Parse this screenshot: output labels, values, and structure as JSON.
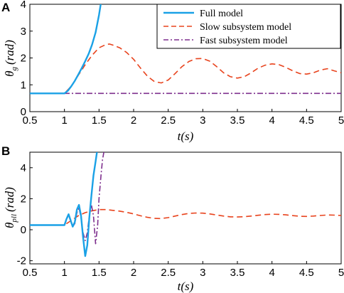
{
  "panels": {
    "A": {
      "label": "A",
      "xlabel": "t(s)",
      "ylabel": "θ",
      "ylabel_sub": "g",
      "ylabel_unit": "(rad)"
    },
    "B": {
      "label": "B",
      "xlabel": "t(s)",
      "ylabel": "θ",
      "ylabel_sub": "pll",
      "ylabel_unit": "(rad)"
    }
  },
  "legend": {
    "entries": [
      "Full model",
      "Slow subsystem model",
      "Fast subsystem model"
    ],
    "colors": [
      "#1aa1e6",
      "#e8431d",
      "#7e2f8e"
    ]
  },
  "chart_data": [
    {
      "type": "line",
      "panel": "A",
      "xlim": [
        0.5,
        5
      ],
      "ylim": [
        0,
        4
      ],
      "xticks": [
        0.5,
        1,
        1.5,
        2,
        2.5,
        3,
        3.5,
        4,
        4.5,
        5
      ],
      "xtick_labels": [
        "0.5",
        "1",
        "1.5",
        "2",
        "2.5",
        "3",
        "3.5",
        "4",
        "4.5",
        "5"
      ],
      "yticks": [
        0,
        1,
        2,
        3,
        4
      ],
      "ytick_labels": [
        "0",
        "1",
        "2",
        "3",
        "4"
      ],
      "grid": false,
      "legend_position": "top-right",
      "series": [
        {
          "name": "Full model",
          "color": "#1aa1e6",
          "style": "solid",
          "x": [
            0.5,
            1.0,
            1.05,
            1.1,
            1.15,
            1.2,
            1.25,
            1.3,
            1.35,
            1.4,
            1.45,
            1.5,
            1.53
          ],
          "y": [
            0.68,
            0.68,
            0.78,
            0.95,
            1.15,
            1.38,
            1.62,
            1.88,
            2.15,
            2.5,
            2.95,
            3.6,
            4.1
          ]
        },
        {
          "name": "Slow subsystem model",
          "color": "#e8431d",
          "style": "dashed",
          "x": [
            0.5,
            1.0,
            1.1,
            1.2,
            1.3,
            1.4,
            1.5,
            1.6,
            1.65,
            1.7,
            1.8,
            1.9,
            2.0,
            2.1,
            2.2,
            2.3,
            2.4,
            2.5,
            2.6,
            2.7,
            2.8,
            2.9,
            3.0,
            3.1,
            3.2,
            3.3,
            3.4,
            3.5,
            3.6,
            3.7,
            3.8,
            3.9,
            4.0,
            4.1,
            4.2,
            4.3,
            4.4,
            4.5,
            4.6,
            4.7,
            4.8,
            4.9,
            5.0
          ],
          "y": [
            0.68,
            0.68,
            0.95,
            1.35,
            1.75,
            2.1,
            2.38,
            2.5,
            2.52,
            2.48,
            2.38,
            2.2,
            1.95,
            1.62,
            1.32,
            1.12,
            1.07,
            1.18,
            1.42,
            1.68,
            1.87,
            1.97,
            1.98,
            1.88,
            1.68,
            1.45,
            1.3,
            1.25,
            1.3,
            1.45,
            1.62,
            1.73,
            1.78,
            1.75,
            1.65,
            1.52,
            1.42,
            1.4,
            1.45,
            1.55,
            1.6,
            1.52,
            1.45
          ]
        },
        {
          "name": "Fast subsystem model",
          "color": "#7e2f8e",
          "style": "dashdot",
          "x": [
            0.5,
            5.0
          ],
          "y": [
            0.68,
            0.68
          ]
        }
      ]
    },
    {
      "type": "line",
      "panel": "B",
      "xlim": [
        0.5,
        5
      ],
      "ylim": [
        -2.2,
        5
      ],
      "xticks": [
        0.5,
        1,
        1.5,
        2,
        2.5,
        3,
        3.5,
        4,
        4.5,
        5
      ],
      "xtick_labels": [
        "0.5",
        "1",
        "1.5",
        "2",
        "2.5",
        "3",
        "3.5",
        "4",
        "4.5",
        "5"
      ],
      "yticks": [
        -2,
        0,
        2,
        4
      ],
      "ytick_labels": [
        "-2",
        "0",
        "2",
        "4"
      ],
      "grid": false,
      "series": [
        {
          "name": "Full model",
          "color": "#1aa1e6",
          "style": "solid",
          "x": [
            0.5,
            1.0,
            1.03,
            1.06,
            1.09,
            1.12,
            1.15,
            1.18,
            1.21,
            1.24,
            1.27,
            1.3,
            1.33,
            1.36,
            1.39,
            1.42,
            1.45,
            1.47
          ],
          "y": [
            0.3,
            0.3,
            0.7,
            1.0,
            0.6,
            0.2,
            0.5,
            1.3,
            1.6,
            0.9,
            -0.5,
            -1.7,
            -1.0,
            0.8,
            2.2,
            3.5,
            4.4,
            5.0
          ]
        },
        {
          "name": "Slow subsystem model",
          "color": "#e8431d",
          "style": "dashed",
          "x": [
            0.5,
            1.0,
            1.1,
            1.2,
            1.3,
            1.4,
            1.5,
            1.6,
            1.7,
            1.8,
            1.9,
            2.0,
            2.1,
            2.2,
            2.3,
            2.4,
            2.5,
            2.6,
            2.7,
            2.8,
            2.9,
            3.0,
            3.1,
            3.2,
            3.3,
            3.4,
            3.5,
            3.6,
            3.7,
            3.8,
            3.9,
            4.0,
            4.1,
            4.2,
            4.3,
            4.4,
            4.5,
            4.6,
            4.7,
            4.8,
            4.9,
            5.0
          ],
          "y": [
            0.3,
            0.3,
            0.6,
            0.9,
            1.1,
            1.22,
            1.3,
            1.3,
            1.25,
            1.2,
            1.12,
            1.02,
            0.9,
            0.8,
            0.73,
            0.72,
            0.78,
            0.88,
            0.98,
            1.05,
            1.08,
            1.07,
            1.02,
            0.95,
            0.88,
            0.83,
            0.82,
            0.84,
            0.88,
            0.93,
            0.98,
            1.0,
            0.99,
            0.96,
            0.91,
            0.87,
            0.86,
            0.88,
            0.92,
            0.95,
            0.94,
            0.92
          ]
        },
        {
          "name": "Fast subsystem model",
          "color": "#7e2f8e",
          "style": "dashdot",
          "x": [
            0.5,
            1.0,
            1.03,
            1.06,
            1.09,
            1.12,
            1.15,
            1.18,
            1.21,
            1.24,
            1.27,
            1.3,
            1.33,
            1.36,
            1.39,
            1.42,
            1.45,
            1.48,
            1.5,
            1.53,
            1.55,
            1.57
          ],
          "y": [
            0.3,
            0.3,
            0.65,
            0.95,
            0.55,
            0.2,
            0.4,
            1.1,
            1.4,
            0.8,
            -0.2,
            -0.7,
            -0.2,
            0.9,
            1.6,
            0.9,
            -0.9,
            0.3,
            2.0,
            3.6,
            4.5,
            5.0
          ]
        }
      ]
    }
  ]
}
